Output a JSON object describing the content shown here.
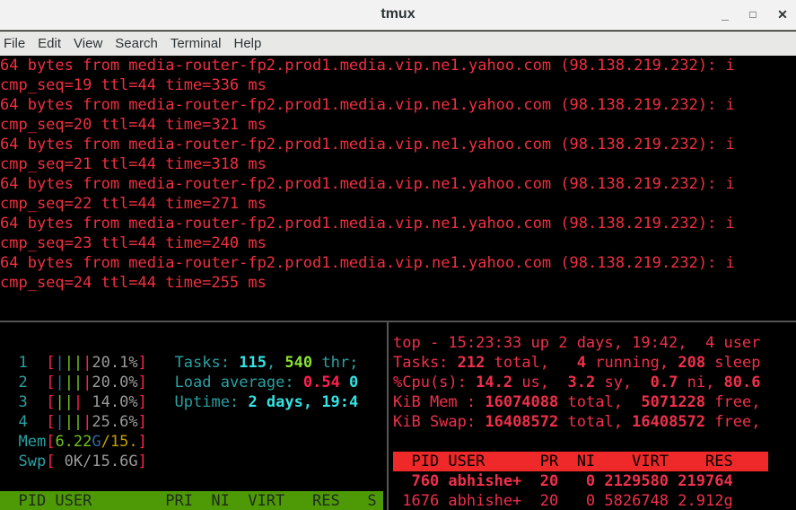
{
  "window": {
    "title": "tmux",
    "minimize": "_",
    "maximize": "□",
    "close": "✕"
  },
  "menu": [
    "File",
    "Edit",
    "View",
    "Search",
    "Terminal",
    "Help"
  ],
  "colors": {
    "ping": "#f0303f",
    "top": "#f0304a",
    "cyan": "#2aa1a3",
    "bright_cyan": "#34e2e2",
    "green": "#8ae234",
    "grey": "#9a9a9a",
    "red": "#ff2050",
    "blue": "#3465a4",
    "yellow": "#c4a000",
    "htop_header_bg": "#4e9a06",
    "top_header_bg": "#ef2929"
  },
  "ping": [
    "64 bytes from media-router-fp2.prod1.media.vip.ne1.yahoo.com (98.138.219.232): i",
    "cmp_seq=19 ttl=44 time=336 ms",
    "64 bytes from media-router-fp2.prod1.media.vip.ne1.yahoo.com (98.138.219.232): i",
    "cmp_seq=20 ttl=44 time=321 ms",
    "64 bytes from media-router-fp2.prod1.media.vip.ne1.yahoo.com (98.138.219.232): i",
    "cmp_seq=21 ttl=44 time=318 ms",
    "64 bytes from media-router-fp2.prod1.media.vip.ne1.yahoo.com (98.138.219.232): i",
    "cmp_seq=22 ttl=44 time=271 ms",
    "64 bytes from media-router-fp2.prod1.media.vip.ne1.yahoo.com (98.138.219.232): i",
    "cmp_seq=23 ttl=44 time=240 ms",
    "64 bytes from media-router-fp2.prod1.media.vip.ne1.yahoo.com (98.138.219.232): i",
    "cmp_seq=24 ttl=44 time=255 ms"
  ],
  "htop": [
    [],
    [
      [
        "  1  ",
        "#2aa1a3"
      ],
      [
        "[",
        "#ff2050"
      ],
      [
        "|",
        "#3465a4"
      ],
      [
        "||",
        "#73c41d"
      ],
      [
        "|",
        "#ff2050"
      ],
      [
        "20.1%",
        "#9a9a9a"
      ],
      [
        "]",
        "#ff2050"
      ],
      [
        "   Tasks: ",
        "#2aa1a3"
      ],
      [
        "115",
        "#34e2e2",
        1
      ],
      [
        ", ",
        "#2aa1a3"
      ],
      [
        "540",
        "#8ae234",
        1
      ],
      [
        " thr;",
        "#2aa1a3"
      ]
    ],
    [
      [
        "  2  ",
        "#2aa1a3"
      ],
      [
        "[",
        "#ff2050"
      ],
      [
        "|",
        "#3465a4"
      ],
      [
        "||",
        "#73c41d"
      ],
      [
        "|",
        "#ff2050"
      ],
      [
        "20.0%",
        "#9a9a9a"
      ],
      [
        "]",
        "#ff2050"
      ],
      [
        "   Load average: ",
        "#2aa1a3"
      ],
      [
        "0.54",
        "#ff2050",
        1
      ],
      [
        " 0",
        "#34e2e2",
        1
      ]
    ],
    [
      [
        "  3  ",
        "#2aa1a3"
      ],
      [
        "[",
        "#ff2050"
      ],
      [
        "||",
        "#73c41d"
      ],
      [
        "|",
        "#ff2050"
      ],
      [
        " 14.0%",
        "#9a9a9a"
      ],
      [
        "]",
        "#ff2050"
      ],
      [
        "   Uptime: ",
        "#2aa1a3"
      ],
      [
        "2 days, 19:4",
        "#34e2e2",
        1
      ]
    ],
    [
      [
        "  4  ",
        "#2aa1a3"
      ],
      [
        "[",
        "#ff2050"
      ],
      [
        "|",
        "#3465a4"
      ],
      [
        "||",
        "#73c41d"
      ],
      [
        "|",
        "#ff2050"
      ],
      [
        "25.6%",
        "#9a9a9a"
      ],
      [
        "]",
        "#ff2050"
      ]
    ],
    [
      [
        "  Mem",
        "#2aa1a3"
      ],
      [
        "[",
        "#ff2050"
      ],
      [
        "6.22",
        "#73c41d"
      ],
      [
        "G",
        "#3465a4"
      ],
      [
        "/15.",
        "#c4a000"
      ],
      [
        "]",
        "#ff2050"
      ]
    ],
    [
      [
        "  Swp",
        "#2aa1a3"
      ],
      [
        "[",
        "#ff2050"
      ],
      [
        " 0K/15.6G",
        "#9a9a9a"
      ],
      [
        "]",
        "#ff2050"
      ]
    ],
    [],
    [
      [
        "  PID USER        PRI  NI  VIRT   RES   S",
        "#1e2a1e"
      ]
    ]
  ],
  "top": [
    [
      [
        "top - 15:23:33 up 2 days, 19:42,  4 user",
        "#f0304a"
      ]
    ],
    [
      [
        "Tasks: ",
        "#f0304a"
      ],
      [
        "212",
        "#f0304a",
        1
      ],
      [
        " total,   ",
        "#f0304a"
      ],
      [
        "4",
        "#f0304a",
        1
      ],
      [
        " running, ",
        "#f0304a"
      ],
      [
        "208",
        "#f0304a",
        1
      ],
      [
        " sleep",
        "#f0304a"
      ]
    ],
    [
      [
        "%Cpu(s): ",
        "#f0304a"
      ],
      [
        "14.2",
        "#f0304a",
        1
      ],
      [
        " us,  ",
        "#f0304a"
      ],
      [
        "3.2",
        "#f0304a",
        1
      ],
      [
        " sy,  ",
        "#f0304a"
      ],
      [
        "0.7",
        "#f0304a",
        1
      ],
      [
        " ni, ",
        "#f0304a"
      ],
      [
        "80.6",
        "#f0304a",
        1
      ]
    ],
    [
      [
        "KiB Mem : ",
        "#f0304a"
      ],
      [
        "16074088",
        "#f0304a",
        1
      ],
      [
        " total,  ",
        "#f0304a"
      ],
      [
        "5071228",
        "#f0304a",
        1
      ],
      [
        " free,",
        "#f0304a"
      ]
    ],
    [
      [
        "KiB Swap: ",
        "#f0304a"
      ],
      [
        "16408572",
        "#f0304a",
        1
      ],
      [
        " total, ",
        "#f0304a"
      ],
      [
        "16408572",
        "#f0304a",
        1
      ],
      [
        " free,",
        "#f0304a"
      ]
    ],
    [],
    [
      [
        "  PID USER      PR  NI    VIRT    RES",
        "#000000"
      ]
    ],
    [
      [
        "  760 abhishe+  20   0 2129580 219764",
        "#f0304a",
        1
      ]
    ],
    [
      [
        " 1676 abhishe+  20   0 5826748 2.912g",
        "#f0304a"
      ]
    ]
  ]
}
